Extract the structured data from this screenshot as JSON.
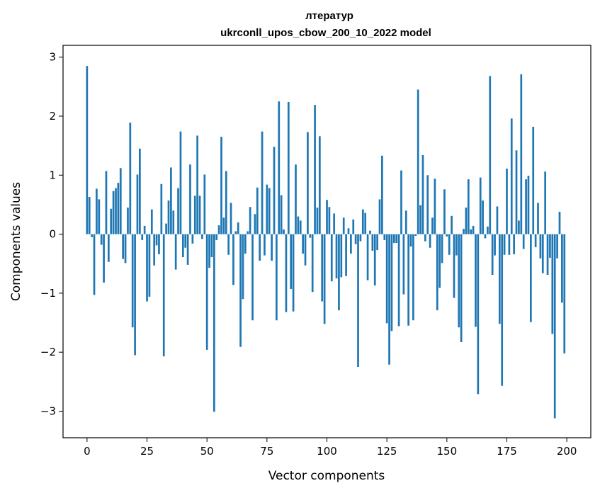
{
  "chart_data": {
    "type": "bar",
    "title": "лтератур",
    "subtitle": "ukrconll_upos_cbow_200_10_2022 model",
    "xlabel": "Vector components",
    "ylabel": "Components values",
    "xlim": [
      -10,
      210
    ],
    "ylim": [
      -3.45,
      3.2
    ],
    "xticks": [
      0,
      25,
      50,
      75,
      100,
      125,
      150,
      175,
      200
    ],
    "yticks": [
      -3,
      -2,
      -1,
      0,
      1,
      2,
      3
    ],
    "xtick_labels": [
      "0",
      "25",
      "50",
      "75",
      "100",
      "125",
      "150",
      "175",
      "200"
    ],
    "ytick_labels": [
      "−3",
      "−2",
      "−1",
      "0",
      "1",
      "2",
      "3"
    ],
    "grid": false,
    "bar_color": "#1f77b4",
    "x": [
      0,
      1,
      2,
      3,
      4,
      5,
      6,
      7,
      8,
      9,
      10,
      11,
      12,
      13,
      14,
      15,
      16,
      17,
      18,
      19,
      20,
      21,
      22,
      23,
      24,
      25,
      26,
      27,
      28,
      29,
      30,
      31,
      32,
      33,
      34,
      35,
      36,
      37,
      38,
      39,
      40,
      41,
      42,
      43,
      44,
      45,
      46,
      47,
      48,
      49,
      50,
      51,
      52,
      53,
      54,
      55,
      56,
      57,
      58,
      59,
      60,
      61,
      62,
      63,
      64,
      65,
      66,
      67,
      68,
      69,
      70,
      71,
      72,
      73,
      74,
      75,
      76,
      77,
      78,
      79,
      80,
      81,
      82,
      83,
      84,
      85,
      86,
      87,
      88,
      89,
      90,
      91,
      92,
      93,
      94,
      95,
      96,
      97,
      98,
      99,
      100,
      101,
      102,
      103,
      104,
      105,
      106,
      107,
      108,
      109,
      110,
      111,
      112,
      113,
      114,
      115,
      116,
      117,
      118,
      119,
      120,
      121,
      122,
      123,
      124,
      125,
      126,
      127,
      128,
      129,
      130,
      131,
      132,
      133,
      134,
      135,
      136,
      137,
      138,
      139,
      140,
      141,
      142,
      143,
      144,
      145,
      146,
      147,
      148,
      149,
      150,
      151,
      152,
      153,
      154,
      155,
      156,
      157,
      158,
      159,
      160,
      161,
      162,
      163,
      164,
      165,
      166,
      167,
      168,
      169,
      170,
      171,
      172,
      173,
      174,
      175,
      176,
      177,
      178,
      179,
      180,
      181,
      182,
      183,
      184,
      185,
      186,
      187,
      188,
      189,
      190,
      191,
      192,
      193,
      194,
      195,
      196,
      197,
      198,
      199
    ],
    "values": [
      2.85,
      0.63,
      -0.05,
      -1.03,
      0.77,
      0.59,
      -0.18,
      -0.82,
      1.07,
      -0.47,
      0.43,
      0.73,
      0.78,
      0.87,
      1.12,
      -0.42,
      -0.49,
      0.45,
      1.89,
      -1.58,
      -2.05,
      1.01,
      1.45,
      -0.1,
      0.14,
      -1.14,
      -1.06,
      0.42,
      -0.53,
      -0.19,
      -0.34,
      0.85,
      -2.07,
      0.18,
      0.57,
      1.13,
      0.4,
      -0.6,
      0.78,
      1.74,
      -0.39,
      -0.23,
      -0.52,
      1.18,
      -0.16,
      0.65,
      1.67,
      0.65,
      -0.08,
      1.01,
      -1.96,
      -0.57,
      -0.39,
      -3.01,
      -0.1,
      0.15,
      1.65,
      0.28,
      1.07,
      -0.35,
      0.53,
      -0.86,
      0.05,
      0.2,
      -1.91,
      -1.1,
      -0.33,
      0.05,
      0.46,
      -1.46,
      0.34,
      0.79,
      -0.45,
      1.74,
      -0.36,
      0.84,
      0.78,
      -0.45,
      1.48,
      -1.46,
      2.25,
      0.66,
      0.08,
      -1.32,
      2.24,
      -0.93,
      -1.31,
      1.18,
      0.3,
      0.23,
      -0.33,
      -0.53,
      1.73,
      -0.06,
      -0.98,
      2.19,
      0.45,
      1.66,
      -1.14,
      -1.52,
      0.58,
      0.46,
      -0.8,
      0.35,
      -0.75,
      -1.29,
      -0.73,
      0.28,
      -0.71,
      0.1,
      -0.33,
      0.25,
      -0.17,
      -2.25,
      -0.12,
      0.42,
      0.36,
      -0.78,
      0.06,
      -0.28,
      -0.87,
      -0.27,
      0.59,
      1.33,
      -0.1,
      -1.51,
      -2.21,
      -1.64,
      -0.15,
      -0.15,
      -1.56,
      1.08,
      -1.02,
      0.4,
      -1.55,
      -0.21,
      -1.46,
      -0.03,
      2.45,
      0.49,
      1.34,
      -0.12,
      1.0,
      -0.23,
      0.28,
      0.94,
      -1.29,
      -0.91,
      -0.49,
      0.76,
      -0.04,
      -0.35,
      0.31,
      -1.08,
      -0.36,
      -1.58,
      -1.83,
      0.09,
      0.45,
      0.93,
      0.08,
      0.14,
      -1.57,
      -2.71,
      0.96,
      0.57,
      -0.07,
      0.13,
      2.68,
      -0.69,
      -0.36,
      0.47,
      -1.52,
      -2.57,
      -0.35,
      1.11,
      -0.35,
      1.96,
      -0.34,
      1.42,
      0.23,
      2.71,
      -0.25,
      0.93,
      0.99,
      -1.49,
      1.82,
      -0.22,
      0.53,
      -0.41,
      -0.66,
      1.06,
      -0.69,
      -0.4,
      -1.69,
      -3.12,
      -0.41,
      0.38,
      -1.16,
      -2.02
    ]
  }
}
